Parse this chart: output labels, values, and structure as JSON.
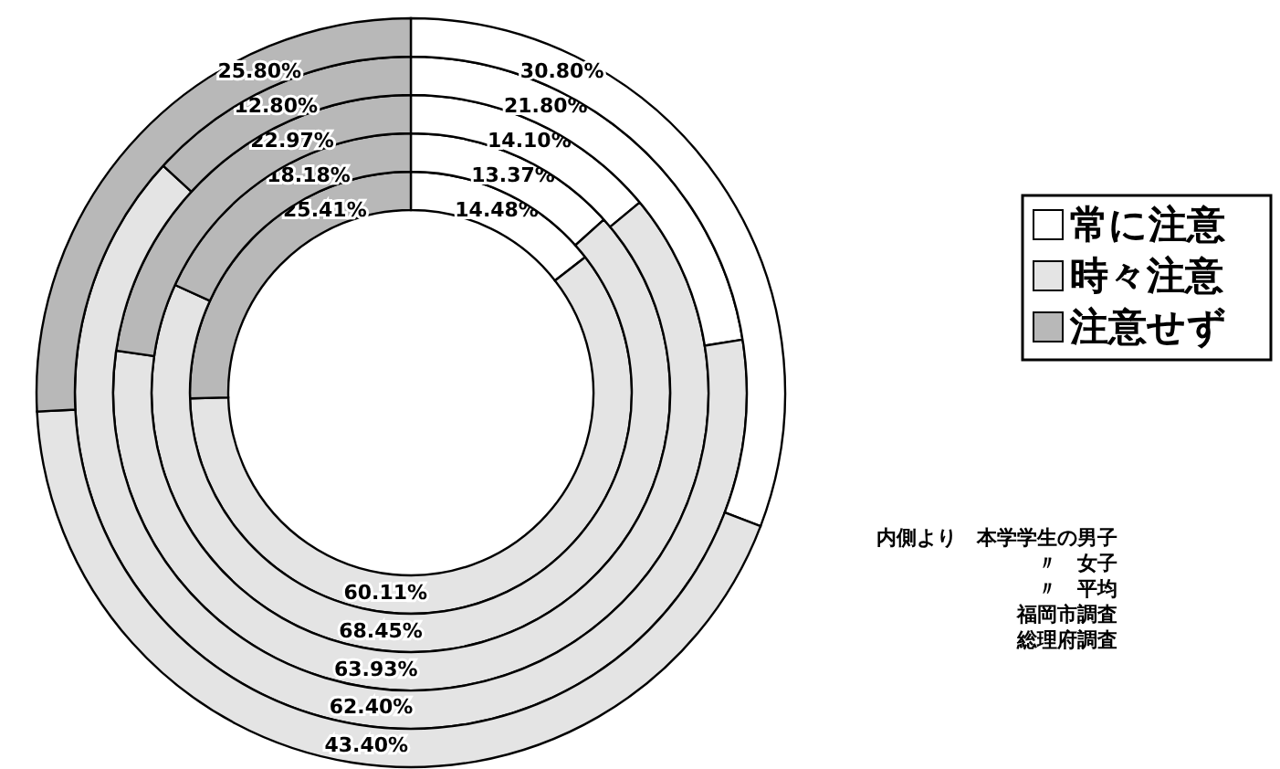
{
  "chart_data": {
    "type": "donut",
    "categories": [
      "常に注意",
      "時々注意",
      "注意せず"
    ],
    "colors": [
      "#ffffff",
      "#e4e4e4",
      "#b8b8b8"
    ],
    "legend": "right",
    "series": [
      {
        "values": [
          14.48,
          60.11,
          25.41
        ],
        "value_labels": [
          "14.48%",
          "60.11%",
          "25.41%"
        ]
      },
      {
        "values": [
          13.37,
          68.45,
          18.18
        ],
        "value_labels": [
          "13.37%",
          "68.45%",
          "18.18%"
        ]
      },
      {
        "values": [
          14.1,
          63.93,
          22.97
        ],
        "value_labels": [
          "14.10%",
          "63.93%",
          "22.97%"
        ]
      },
      {
        "values": [
          21.8,
          62.4,
          12.8
        ],
        "value_labels": [
          "21.80%",
          "62.40%",
          "12.80%"
        ]
      },
      {
        "values": [
          30.8,
          43.4,
          25.8
        ],
        "value_labels": [
          "30.80%",
          "43.40%",
          "25.80%"
        ]
      }
    ],
    "annotations": [
      "内側より　本学学生の男子",
      "〃　女子",
      "〃　平均",
      "福岡市調査",
      "総理府調査"
    ]
  }
}
